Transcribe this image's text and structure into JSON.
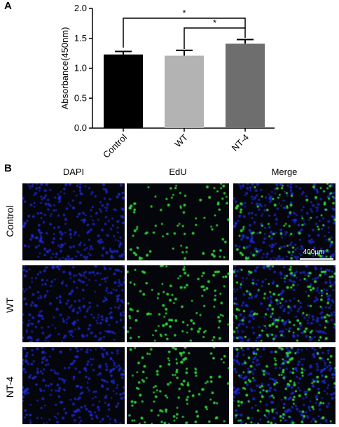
{
  "panel_a_letter": "A",
  "panel_b_letter": "B",
  "chart_data": {
    "type": "bar",
    "categories": [
      "Control",
      "WT",
      "NT-4"
    ],
    "values": [
      1.23,
      1.21,
      1.41
    ],
    "errors": [
      0.05,
      0.09,
      0.07
    ],
    "colors": [
      "#000000",
      "#b3b3b3",
      "#6e6e6e"
    ],
    "ylabel": "Absorbance(450nm)",
    "xlabel": "",
    "ylim": [
      0,
      2.0
    ],
    "yticks": [
      "0.0",
      "0.5",
      "1.0",
      "1.5",
      "2.0"
    ],
    "significance": [
      {
        "from": "Control",
        "to": "NT-4",
        "label": "*"
      },
      {
        "from": "WT",
        "to": "NT-4",
        "label": "*"
      }
    ]
  },
  "panel_b": {
    "columns": [
      "DAPI",
      "EdU",
      "Merge"
    ],
    "rows": [
      "Control",
      "WT",
      "NT-4"
    ],
    "scale_bar": "400μm",
    "colors": {
      "dapi": "#1f2ee0",
      "edu": "#2fd83a",
      "background": "#05050c"
    },
    "edu_density": [
      0.55,
      0.9,
      1.0
    ]
  }
}
